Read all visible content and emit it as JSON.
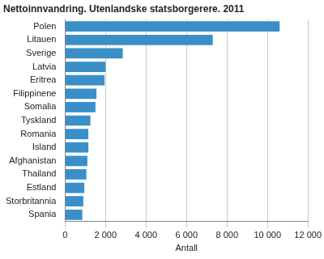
{
  "chart_data": {
    "type": "bar",
    "orientation": "horizontal",
    "title": "Nettoinnvandring. Utenlandske statsborgerere. 2011",
    "x_label": "Antall",
    "categories": [
      "Polen",
      "Litauen",
      "Sverige",
      "Latvia",
      "Eritrea",
      "Filippinene",
      "Somalia",
      "Tyskland",
      "Romania",
      "Island",
      "Afghanistan",
      "Thailand",
      "Estland",
      "Storbritannia",
      "Spania"
    ],
    "values": [
      10600,
      7300,
      2850,
      2000,
      1950,
      1550,
      1500,
      1250,
      1150,
      1150,
      1100,
      1050,
      950,
      900,
      850
    ],
    "color": "#3a8fc8",
    "xlim": [
      0,
      12000
    ],
    "xticks": [
      0,
      {
        "value": 2000,
        "label": "2 000"
      },
      {
        "value": 4000,
        "label": "4 000"
      },
      {
        "value": 6000,
        "label": "6 000"
      },
      {
        "value": 8000,
        "label": "8 000"
      },
      {
        "value": 10000,
        "label": "10 000"
      },
      {
        "value": 12000,
        "label": "12 000"
      }
    ],
    "grid": true
  }
}
